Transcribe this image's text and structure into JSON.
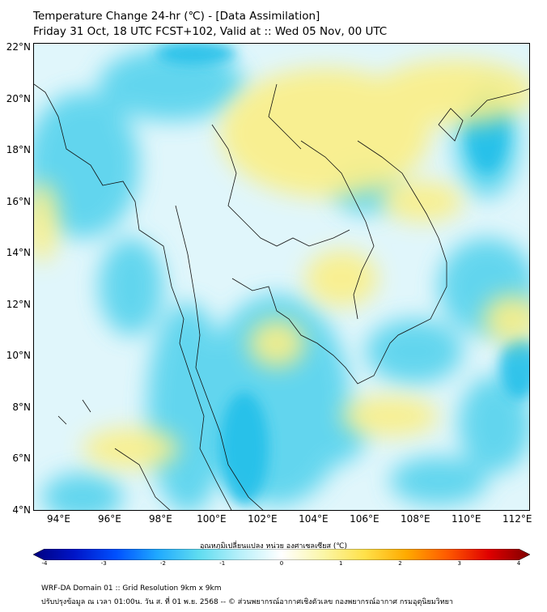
{
  "header": {
    "title": "Temperature Change 24-hr (℃) - [Data Assimilation]",
    "subtitle": "Friday 31 Oct, 18 UTC FCST+102, Valid at :: Wed 05 Nov, 00 UTC"
  },
  "map": {
    "lon_range": [
      93,
      112.5
    ],
    "lat_range": [
      4,
      22.2
    ],
    "lat_ticks": [
      "22°N",
      "20°N",
      "18°N",
      "16°N",
      "14°N",
      "12°N",
      "10°N",
      "8°N",
      "6°N",
      "4°N"
    ],
    "lon_ticks": [
      "94°E",
      "96°E",
      "98°E",
      "100°E",
      "102°E",
      "104°E",
      "106°E",
      "108°E",
      "110°E",
      "112°E"
    ],
    "base_color": "#e0f6fb",
    "warm_color": "#fbef86",
    "cool_color": "#4ed0ec"
  },
  "colorbar": {
    "label": "อุณหภูมิเปลี่ยนแปลง หน่วย องศาเซลเซียส (℃)",
    "ticks": [
      "-4",
      "-3",
      "-2",
      "-1",
      "0",
      "1",
      "2",
      "3",
      "4"
    ],
    "min": -4,
    "max": 4,
    "colors": [
      "#00007f",
      "#0015c8",
      "#0050ff",
      "#1fa9ff",
      "#5fdcf0",
      "#b8f0fa",
      "#ffffff",
      "#fbf6a8",
      "#ffe14a",
      "#ffab00",
      "#ff5a00",
      "#e00000",
      "#7f0000"
    ]
  },
  "footer": {
    "line1": "WRF-DA Domain 01 :: Grid Resolution 9km x 9km",
    "line2": "ปรับปรุงข้อมูล ณ เวลา 01:00น. วัน ส. ที่ 01 พ.ย. 2568 -- © ส่วนพยากรณ์อากาศเชิงตัวเลข กองพยากรณ์อากาศ กรมอุตุนิยมวิทยา"
  }
}
